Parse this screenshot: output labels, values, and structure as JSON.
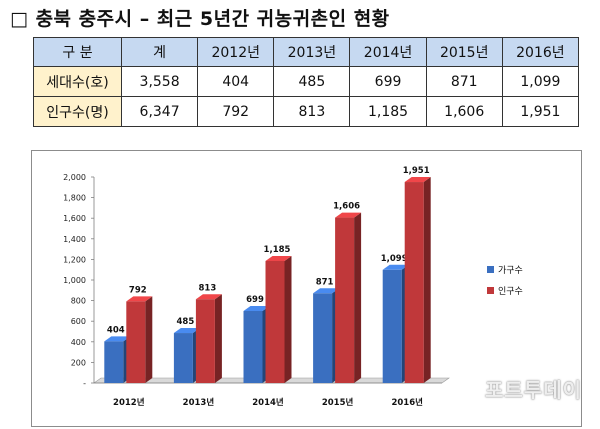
{
  "title": "□ 충북 충주시 – 최근 5년간 귀농귀촌인 현황",
  "table": {
    "header": [
      "구  분",
      "계",
      "2012년",
      "2013년",
      "2014년",
      "2015년",
      "2016년"
    ],
    "rows": [
      {
        "label": "세대수(호)",
        "cells": [
          "3,558",
          "404",
          "485",
          "699",
          "871",
          "1,099"
        ]
      },
      {
        "label": "인구수(명)",
        "cells": [
          "6,347",
          "792",
          "813",
          "1,185",
          "1,606",
          "1,951"
        ]
      }
    ]
  },
  "chart_data": {
    "type": "bar",
    "categories": [
      "2012년",
      "2013년",
      "2014년",
      "2015년",
      "2016년"
    ],
    "series": [
      {
        "name": "가구수",
        "values": [
          404,
          485,
          699,
          871,
          1099
        ],
        "labels": [
          "404",
          "485",
          "699",
          "871",
          "1,099"
        ],
        "color": "#3a6fc0"
      },
      {
        "name": "인구수",
        "values": [
          792,
          813,
          1185,
          1606,
          1951
        ],
        "labels": [
          "792",
          "813",
          "1,185",
          "1,606",
          "1,951"
        ],
        "color": "#c0383a"
      }
    ],
    "yticks": [
      "-",
      "200",
      "400",
      "600",
      "800",
      "1,000",
      "1,200",
      "1,400",
      "1,600",
      "1,800",
      "2,000"
    ],
    "ylim": [
      0,
      2000
    ],
    "legend_position": "right",
    "grid": false
  },
  "watermark": "포트투데이"
}
